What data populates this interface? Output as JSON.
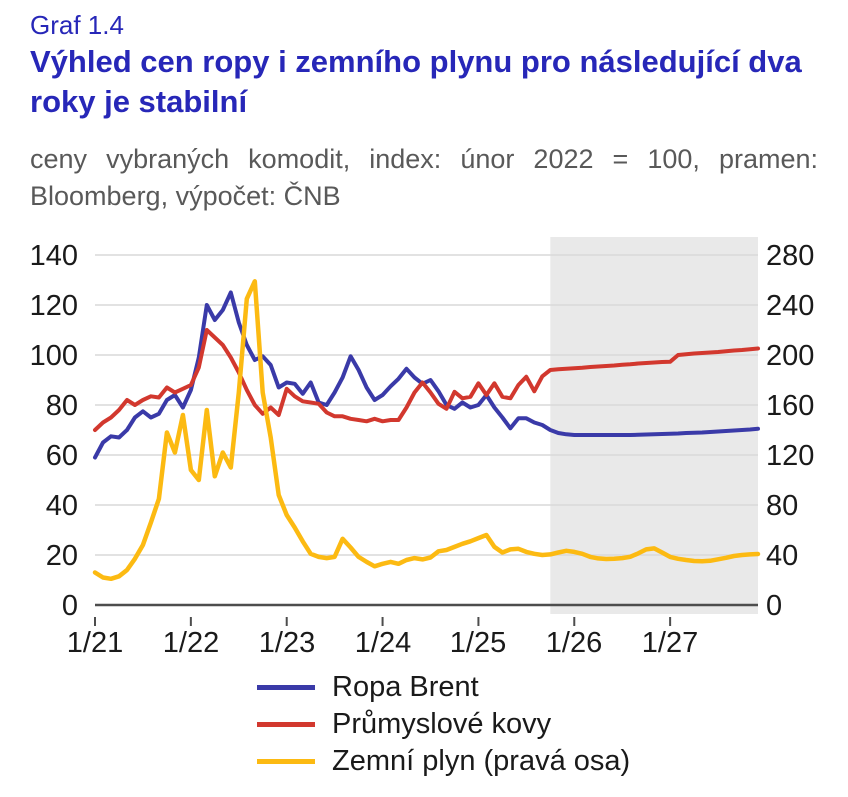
{
  "header": {
    "kicker": "Graf 1.4",
    "title": "Výhled cen ropy i zemního plynu pro následující dva roky je stabilní",
    "title_lines": [
      "Výhled cen ropy i zemního plynu pro následující dva",
      "roky je stabilní"
    ],
    "subtitle": "ceny vybraných komodit, index: únor 2022 = 100, pramen: Bloomberg, výpočet: ČNB",
    "subtitle_lines": [
      "ceny vybraných komodit, index: únor 2022 = 100, pramen:",
      "Bloomberg, výpočet: ČNB"
    ]
  },
  "colors": {
    "heading_blue": "#2727b8",
    "subtitle_gray": "#595959",
    "forecast_shade": "#e9e9e9",
    "gridline": "#d9d9d9",
    "axis_line": "#4d4d4d"
  },
  "chart_data": {
    "type": "line",
    "title": "Výhled cen ropy i zemního plynu pro následující dva roky je stabilní",
    "subtitle": "ceny vybraných komodit, index: únor 2022 = 100, pramen: Bloomberg, výpočet: ČNB",
    "x_axis": {
      "unit": "month",
      "start": "1/2021",
      "end": "12/2027",
      "tick_labels": [
        "1/21",
        "1/22",
        "1/23",
        "1/24",
        "1/25",
        "1/26",
        "1/27"
      ],
      "months_between_ticks": 12
    },
    "left_axis": {
      "min": 0,
      "max": 140,
      "step": 20,
      "tick_labels": [
        "140",
        "120",
        "100",
        "80",
        "60",
        "40",
        "20",
        "0"
      ]
    },
    "right_axis": {
      "min": 0,
      "max": 280,
      "step": 40,
      "tick_labels": [
        "280",
        "240",
        "200",
        "160",
        "120",
        "80",
        "40",
        "0"
      ]
    },
    "grid": true,
    "legend_position": "bottom",
    "forecast": {
      "start_month_index": 57,
      "start_label": "10/2025",
      "shaded": true
    },
    "series": [
      {
        "name": "Ropa Brent",
        "axis": "left",
        "color": "#3a3aa8",
        "values": [
          59,
          65,
          67.5,
          67,
          70,
          75,
          77.5,
          75,
          76.5,
          82,
          84,
          79,
          86,
          99,
          120,
          114,
          118,
          125,
          113,
          104,
          98,
          99.5,
          96,
          87,
          89,
          88.5,
          84.5,
          89,
          81,
          80,
          85,
          91,
          99.5,
          94,
          87,
          82,
          84,
          87.5,
          90.5,
          94.5,
          91,
          88.5,
          90,
          85.5,
          80,
          78.5,
          81,
          79,
          80,
          84,
          79,
          75,
          70.7,
          74.7,
          74.7,
          73,
          72,
          70,
          68.8,
          68.3,
          68,
          68,
          68,
          68,
          68,
          68,
          68,
          68,
          68.1,
          68.2,
          68.3,
          68.4,
          68.5,
          68.6,
          68.8,
          68.9,
          69,
          69.2,
          69.4,
          69.6,
          69.8,
          70,
          70.2,
          70.5
        ]
      },
      {
        "name": "Průmyslové kovy",
        "axis": "left",
        "color": "#d2382e",
        "values": [
          70,
          73,
          75,
          78,
          82,
          80,
          82,
          83.5,
          83,
          87,
          85,
          86.5,
          88,
          95,
          110,
          107,
          104,
          99,
          93,
          86,
          80,
          76.5,
          79,
          76,
          86.5,
          83.5,
          81.5,
          81,
          80.5,
          77,
          75.5,
          75.5,
          74.5,
          74,
          73.5,
          74.5,
          73.5,
          74,
          74,
          79,
          85,
          89,
          85,
          80.5,
          78.5,
          85.3,
          82.7,
          83.3,
          88.7,
          84,
          88.7,
          83.3,
          82.7,
          88,
          91.3,
          85.5,
          91.5,
          94,
          94.3,
          94.5,
          94.7,
          94.9,
          95.2,
          95.4,
          95.6,
          95.8,
          96.1,
          96.3,
          96.6,
          96.8,
          97,
          97.2,
          97.3,
          100,
          100.3,
          100.6,
          100.8,
          101,
          101.2,
          101.5,
          101.8,
          102,
          102.3,
          102.6
        ]
      },
      {
        "name": "Zemní plyn (pravá osa)",
        "axis": "right",
        "color": "#fcba12",
        "values": [
          26,
          22,
          21,
          23,
          28,
          37,
          48,
          66,
          85,
          138,
          122,
          152,
          108,
          100,
          156,
          103,
          122,
          110,
          170,
          245,
          259,
          170,
          134,
          88,
          72,
          62,
          51,
          41,
          38.5,
          37.5,
          38.5,
          53,
          46,
          38.5,
          34.5,
          31,
          33,
          34.5,
          33,
          36,
          37.5,
          36.5,
          38,
          43,
          44,
          46.5,
          49,
          51,
          53.5,
          56,
          46.5,
          42,
          44.5,
          45,
          42.5,
          41,
          40,
          40.5,
          42,
          43.4,
          42.5,
          41,
          38.5,
          37.3,
          36.8,
          37,
          37.5,
          38.6,
          41.3,
          44.5,
          45.3,
          42,
          38.5,
          37,
          36,
          35.2,
          35,
          35.4,
          36.6,
          37.8,
          39.2,
          40,
          40.5,
          40.8
        ]
      }
    ]
  }
}
